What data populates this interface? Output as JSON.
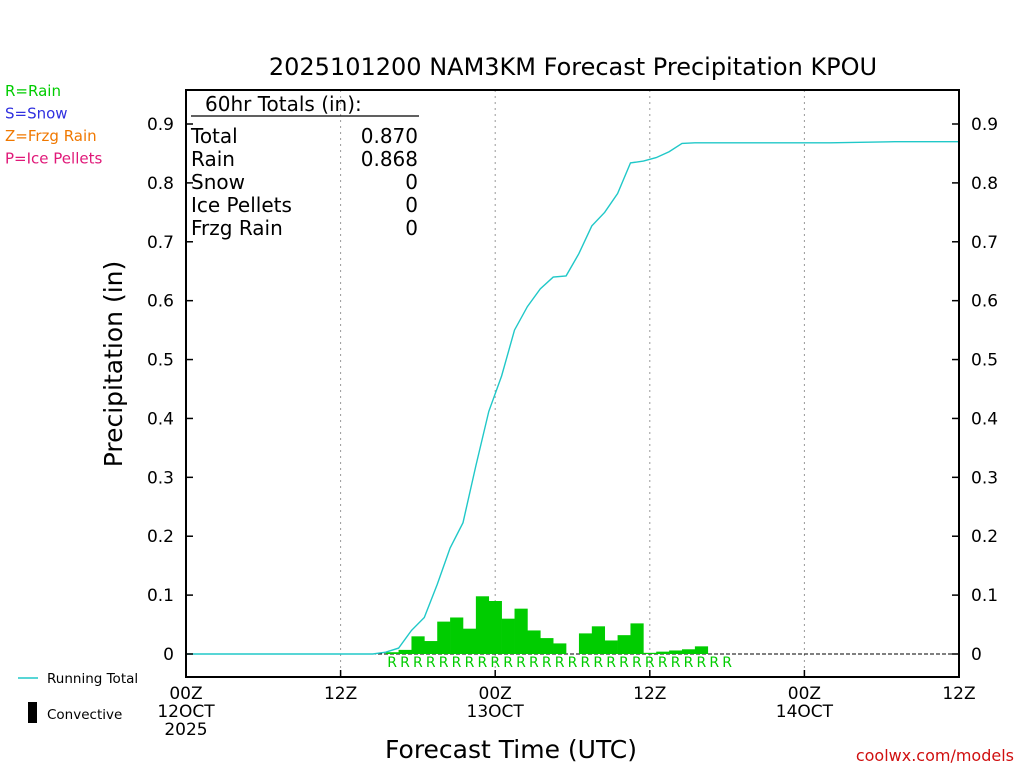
{
  "chart_data": {
    "type": "bar",
    "title": "2025101200 NAM3KM Forecast Precipitation KPOU",
    "xlabel": "Forecast Time (UTC)",
    "ylabel": "Precipitation (in)",
    "ylim": [
      0,
      0.95
    ],
    "y_ticks": [
      0,
      0.1,
      0.2,
      0.3,
      0.4,
      0.5,
      0.6,
      0.7,
      0.8,
      0.9
    ],
    "y_tick_labels": [
      "0",
      "0.1",
      "0.2",
      "0.3",
      "0.4",
      "0.5",
      "0.6",
      "0.7",
      "0.8",
      "0.9"
    ],
    "xlim_hours": [
      0,
      60
    ],
    "x_ticks": [
      {
        "hour": 0,
        "lines": [
          "00Z",
          "12OCT",
          "2025"
        ]
      },
      {
        "hour": 12,
        "lines": [
          "12Z"
        ]
      },
      {
        "hour": 24,
        "lines": [
          "00Z",
          "13OCT"
        ]
      },
      {
        "hour": 36,
        "lines": [
          "12Z"
        ]
      },
      {
        "hour": 48,
        "lines": [
          "00Z",
          "14OCT"
        ]
      },
      {
        "hour": 60,
        "lines": [
          "12Z"
        ]
      }
    ],
    "gridlines_hours": [
      12,
      24,
      36,
      48
    ],
    "totals": {
      "heading": "60hr Totals (in):",
      "rows": [
        {
          "label": "Total",
          "value": "0.870"
        },
        {
          "label": "Rain",
          "value": "0.868"
        },
        {
          "label": "Snow",
          "value": "0"
        },
        {
          "label": "Ice Pellets",
          "value": "0"
        },
        {
          "label": "Frzg Rain",
          "value": "0"
        }
      ]
    },
    "series": [
      {
        "name": "Rain",
        "kind": "bars",
        "color": "#00cc00",
        "bar_hours": [
          16,
          17,
          18,
          19,
          20,
          21,
          22,
          23,
          24,
          25,
          26,
          27,
          28,
          29,
          30,
          31,
          32,
          33,
          34,
          35,
          36,
          37,
          38,
          39,
          40,
          41,
          42
        ],
        "values": [
          0.003,
          0.007,
          0.03,
          0.022,
          0.055,
          0.062,
          0.043,
          0.098,
          0.09,
          0.06,
          0.077,
          0.04,
          0.027,
          0.018,
          0.0,
          0.035,
          0.047,
          0.023,
          0.032,
          0.052,
          0.002,
          0.004,
          0.006,
          0.008,
          0.013,
          0.0,
          0.0
        ]
      },
      {
        "name": "Running Total",
        "kind": "line",
        "color": "#20c8c8",
        "x_hours": [
          0,
          10,
          14.5,
          15.5,
          16.5,
          17.5,
          18.5,
          19.5,
          20.5,
          21.5,
          22.5,
          23.5,
          24.5,
          25.5,
          26.5,
          27.5,
          28.5,
          29.5,
          30.5,
          31.5,
          32.5,
          33.5,
          34.5,
          35.5,
          36.5,
          37.5,
          38.5,
          39.5,
          40.5,
          41.5,
          45,
          50,
          55,
          60
        ],
        "values": [
          0.0,
          0.0,
          0.0,
          0.003,
          0.01,
          0.04,
          0.062,
          0.118,
          0.18,
          0.223,
          0.32,
          0.412,
          0.472,
          0.55,
          0.59,
          0.62,
          0.64,
          0.642,
          0.68,
          0.727,
          0.75,
          0.782,
          0.834,
          0.837,
          0.843,
          0.853,
          0.867,
          0.868,
          0.868,
          0.868,
          0.868,
          0.868,
          0.87,
          0.87
        ]
      }
    ],
    "type_marks": {
      "letter": "R",
      "color": "#00cc00",
      "hours": [
        16,
        17,
        18,
        19,
        20,
        21,
        22,
        23,
        24,
        25,
        26,
        27,
        28,
        29,
        30,
        31,
        32,
        33,
        34,
        35,
        36,
        37,
        38,
        39,
        40,
        41,
        42
      ]
    },
    "type_legend": [
      {
        "text": "R=Rain",
        "color": "#00cc00"
      },
      {
        "text": "S=Snow",
        "color": "#3030e0"
      },
      {
        "text": "Z=Frzg Rain",
        "color": "#f07800"
      },
      {
        "text": "P=Ice Pellets",
        "color": "#e01878"
      }
    ],
    "legend": [
      {
        "label": "Running Total",
        "kind": "line",
        "color": "#20c8c8"
      },
      {
        "label": "Convective",
        "kind": "box",
        "color": "#000000"
      }
    ],
    "credit": {
      "text": "coolwx.com/models",
      "color": "#d01010"
    }
  }
}
